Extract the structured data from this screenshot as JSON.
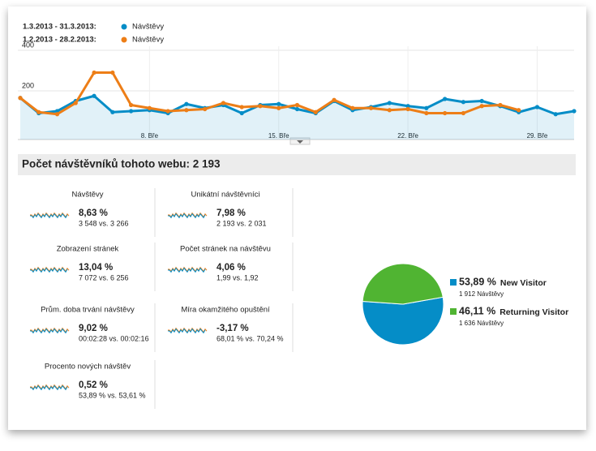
{
  "chart_data": [
    {
      "type": "line",
      "categories": [
        null,
        null,
        null,
        null,
        null,
        null,
        null,
        "8. Bře",
        null,
        null,
        null,
        null,
        null,
        null,
        "15. Bře",
        null,
        null,
        null,
        null,
        null,
        null,
        "22. Bře",
        null,
        null,
        null,
        null,
        null,
        null,
        "29. Bře",
        null,
        null
      ],
      "series": [
        {
          "name": "Návštěvy",
          "period": "1.3.2013 - 31.3.2013:",
          "color": "#058dc7",
          "values": [
            165,
            90,
            100,
            150,
            175,
            95,
            100,
            105,
            90,
            135,
            115,
            130,
            90,
            130,
            135,
            110,
            90,
            150,
            105,
            120,
            140,
            125,
            115,
            160,
            145,
            150,
            125,
            95,
            120,
            85,
            100
          ]
        },
        {
          "name": "Návštěvy",
          "period": "1.2.2013 - 28.2.2013:",
          "color": "#ed7e17",
          "values": [
            165,
            95,
            85,
            140,
            290,
            290,
            130,
            115,
            100,
            105,
            110,
            140,
            120,
            125,
            115,
            130,
            95,
            155,
            115,
            115,
            105,
            110,
            90,
            90,
            90,
            125,
            130,
            105,
            null,
            null,
            null
          ]
        }
      ],
      "ylim": [
        0,
        400
      ],
      "yticks": [
        200,
        400
      ],
      "grid": true
    },
    {
      "type": "pie",
      "labels": [
        "New Visitor",
        "Returning Visitor"
      ],
      "values": [
        53.89,
        46.11
      ],
      "value_labels": [
        "53,89 %",
        "46,11 %"
      ],
      "details": [
        "1 912 Návštěvy",
        "1 636 Návštěvy"
      ],
      "colors": [
        "#058dc7",
        "#50b432"
      ]
    }
  ],
  "summary": {
    "title": "Počet návštěvníků tohoto webu: 2 193",
    "metrics": [
      {
        "label": "Návštěvy",
        "change": "8,63 %",
        "detail": "3 548 vs. 3 266",
        "color": "#3a9f2a"
      },
      {
        "label": "Unikátní návštěvníci",
        "change": "7,98 %",
        "detail": "2 193 vs. 2 031",
        "color": "#3a9f2a"
      },
      {
        "label": "Zobrazení stránek",
        "change": "13,04 %",
        "detail": "7 072 vs. 6 256",
        "color": "#3a9f2a"
      },
      {
        "label": "Počet stránek na návštěvu",
        "change": "4,06 %",
        "detail": "1,99 vs. 1,92",
        "color": "#3a9f2a"
      },
      {
        "label": "Prům. doba trvání návštěvy",
        "change": "9,02 %",
        "detail": "00:02:28 vs. 00:02:16",
        "color": "#3a9f2a"
      },
      {
        "label": "Míra okamžitého opuštění",
        "change": "-3,17 %",
        "detail": "68,01 % vs. 70,24 %",
        "color": "#cc0000"
      },
      {
        "label": "Procento nových návštěv",
        "change": "0,52 %",
        "detail": "53,89 % vs. 53,61 %",
        "color": "#3a9f2a"
      }
    ]
  }
}
